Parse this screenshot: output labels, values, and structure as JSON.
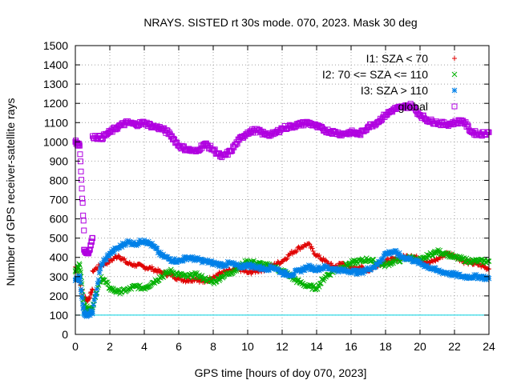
{
  "chart_data": {
    "type": "scatter",
    "title": "NRAYS. SISTED rt 30s mode. 070, 2023. Mask 30 deg",
    "xlabel": "GPS time [hours of doy 070, 2023]",
    "ylabel": "Number of GPS receiver-satellite rays",
    "xlim": [
      0,
      24
    ],
    "ylim": [
      0,
      1500
    ],
    "xticks": [
      "0",
      "2",
      "4",
      "6",
      "8",
      "10",
      "12",
      "14",
      "16",
      "18",
      "20",
      "22",
      "24"
    ],
    "yticks": [
      "0",
      "100",
      "200",
      "300",
      "400",
      "500",
      "600",
      "700",
      "800",
      "900",
      "1000",
      "1100",
      "1200",
      "1300",
      "1400",
      "1500"
    ],
    "grid": true,
    "legend_position": "top-right",
    "threshold_line": {
      "y": 100,
      "color": "#00d0e0"
    },
    "series": [
      {
        "name": "I1: SZA < 70",
        "marker": "+",
        "color": "#e00000",
        "points": [
          [
            0,
            350
          ],
          [
            0.5,
            190
          ],
          [
            0.75,
            180
          ],
          [
            1,
            230
          ],
          [
            1,
            330
          ],
          [
            1.5,
            360
          ],
          [
            2,
            380
          ],
          [
            2.5,
            410
          ],
          [
            3,
            370
          ],
          [
            3.5,
            360
          ],
          [
            4,
            350
          ],
          [
            4.5,
            340
          ],
          [
            5,
            320
          ],
          [
            5.5,
            310
          ],
          [
            6,
            290
          ],
          [
            6.5,
            280
          ],
          [
            7,
            290
          ],
          [
            7.5,
            270
          ],
          [
            8,
            300
          ],
          [
            8.5,
            320
          ],
          [
            9,
            330
          ],
          [
            9.5,
            340
          ],
          [
            10,
            320
          ],
          [
            10.5,
            330
          ],
          [
            11,
            340
          ],
          [
            11.5,
            360
          ],
          [
            12,
            380
          ],
          [
            12.5,
            420
          ],
          [
            13,
            450
          ],
          [
            13.5,
            470
          ],
          [
            14,
            410
          ],
          [
            14.5,
            380
          ],
          [
            15,
            350
          ],
          [
            15.5,
            370
          ],
          [
            16,
            340
          ],
          [
            16.5,
            350
          ],
          [
            17,
            330
          ],
          [
            17.5,
            360
          ],
          [
            18,
            380
          ],
          [
            18.5,
            390
          ],
          [
            19,
            400
          ],
          [
            19.5,
            410
          ],
          [
            20,
            390
          ],
          [
            20.5,
            370
          ],
          [
            21,
            390
          ],
          [
            21.5,
            420
          ],
          [
            22,
            410
          ],
          [
            22.5,
            380
          ],
          [
            23,
            370
          ],
          [
            23.5,
            360
          ],
          [
            24,
            340
          ]
        ]
      },
      {
        "name": "I2: 70 <= SZA <= 110",
        "marker": "x",
        "color": "#00b000",
        "points": [
          [
            0,
            330
          ],
          [
            0.25,
            360
          ],
          [
            0.5,
            150
          ],
          [
            0.75,
            130
          ],
          [
            1,
            140
          ],
          [
            1.5,
            300
          ],
          [
            2,
            240
          ],
          [
            2.5,
            220
          ],
          [
            3,
            230
          ],
          [
            3.5,
            250
          ],
          [
            4,
            240
          ],
          [
            4.5,
            270
          ],
          [
            5,
            300
          ],
          [
            5.5,
            330
          ],
          [
            6,
            310
          ],
          [
            6.5,
            300
          ],
          [
            7,
            310
          ],
          [
            7.5,
            290
          ],
          [
            8,
            270
          ],
          [
            8.5,
            300
          ],
          [
            9,
            320
          ],
          [
            9.5,
            350
          ],
          [
            10,
            380
          ],
          [
            10.5,
            370
          ],
          [
            11,
            360
          ],
          [
            11.5,
            350
          ],
          [
            12,
            330
          ],
          [
            12.5,
            300
          ],
          [
            13,
            270
          ],
          [
            13.5,
            250
          ],
          [
            14,
            240
          ],
          [
            14.5,
            300
          ],
          [
            15,
            330
          ],
          [
            15.5,
            350
          ],
          [
            16,
            370
          ],
          [
            16.5,
            380
          ],
          [
            17,
            390
          ],
          [
            17.5,
            370
          ],
          [
            18,
            360
          ],
          [
            18.5,
            380
          ],
          [
            19,
            390
          ],
          [
            19.5,
            400
          ],
          [
            20,
            380
          ],
          [
            20.5,
            410
          ],
          [
            21,
            430
          ],
          [
            21.5,
            420
          ],
          [
            22,
            400
          ],
          [
            22.5,
            390
          ],
          [
            23,
            380
          ],
          [
            23.5,
            380
          ],
          [
            24,
            380
          ]
        ]
      },
      {
        "name": "I3: SZA > 110",
        "marker": "*",
        "color": "#0080e8",
        "points": [
          [
            0,
            280
          ],
          [
            0.25,
            300
          ],
          [
            0.5,
            110
          ],
          [
            0.75,
            100
          ],
          [
            1,
            120
          ],
          [
            1.5,
            360
          ],
          [
            2,
            420
          ],
          [
            2.5,
            450
          ],
          [
            3,
            480
          ],
          [
            3.5,
            470
          ],
          [
            4,
            490
          ],
          [
            4.5,
            460
          ],
          [
            5,
            410
          ],
          [
            5.5,
            390
          ],
          [
            6,
            380
          ],
          [
            6.5,
            400
          ],
          [
            7,
            390
          ],
          [
            7.5,
            380
          ],
          [
            8,
            370
          ],
          [
            8.5,
            360
          ],
          [
            9,
            370
          ],
          [
            9.5,
            350
          ],
          [
            10,
            360
          ],
          [
            10.5,
            350
          ],
          [
            11,
            340
          ],
          [
            11.5,
            350
          ],
          [
            12,
            320
          ],
          [
            12.5,
            310
          ],
          [
            13,
            330
          ],
          [
            13.5,
            350
          ],
          [
            14,
            340
          ],
          [
            14.5,
            350
          ],
          [
            15,
            340
          ],
          [
            15.5,
            330
          ],
          [
            16,
            330
          ],
          [
            16.5,
            320
          ],
          [
            17,
            340
          ],
          [
            17.5,
            360
          ],
          [
            18,
            420
          ],
          [
            18.5,
            430
          ],
          [
            19,
            400
          ],
          [
            19.5,
            390
          ],
          [
            20,
            370
          ],
          [
            20.5,
            350
          ],
          [
            21,
            330
          ],
          [
            21.5,
            320
          ],
          [
            22,
            310
          ],
          [
            22.5,
            300
          ],
          [
            23,
            300
          ],
          [
            23.5,
            300
          ],
          [
            24,
            290
          ]
        ]
      },
      {
        "name": "global",
        "marker": "square",
        "color": "#b000e0",
        "points": [
          [
            0,
            1000
          ],
          [
            0.25,
            980
          ],
          [
            0.5,
            540
          ],
          [
            0.5,
            440
          ],
          [
            0.75,
            420
          ],
          [
            1,
            500
          ],
          [
            1,
            1030
          ],
          [
            1.5,
            1020
          ],
          [
            2,
            1050
          ],
          [
            2.5,
            1080
          ],
          [
            3,
            1100
          ],
          [
            3.5,
            1090
          ],
          [
            4,
            1100
          ],
          [
            4.5,
            1080
          ],
          [
            5,
            1070
          ],
          [
            5.5,
            1040
          ],
          [
            6,
            980
          ],
          [
            6.5,
            960
          ],
          [
            7,
            950
          ],
          [
            7.5,
            990
          ],
          [
            8,
            960
          ],
          [
            8.5,
            920
          ],
          [
            9,
            950
          ],
          [
            9.5,
            1010
          ],
          [
            10,
            1050
          ],
          [
            10.5,
            1060
          ],
          [
            11,
            1040
          ],
          [
            11.5,
            1040
          ],
          [
            12,
            1070
          ],
          [
            12.5,
            1080
          ],
          [
            13,
            1090
          ],
          [
            13.5,
            1100
          ],
          [
            14,
            1080
          ],
          [
            14.5,
            1060
          ],
          [
            15,
            1050
          ],
          [
            15.5,
            1040
          ],
          [
            16,
            1050
          ],
          [
            16.5,
            1040
          ],
          [
            17,
            1080
          ],
          [
            17.5,
            1100
          ],
          [
            18,
            1140
          ],
          [
            18.5,
            1170
          ],
          [
            19,
            1180
          ],
          [
            19.5,
            1190
          ],
          [
            20,
            1140
          ],
          [
            20.5,
            1110
          ],
          [
            21,
            1100
          ],
          [
            21.5,
            1090
          ],
          [
            22,
            1100
          ],
          [
            22.5,
            1110
          ],
          [
            23,
            1050
          ],
          [
            23.5,
            1040
          ],
          [
            24,
            1050
          ]
        ]
      }
    ]
  }
}
